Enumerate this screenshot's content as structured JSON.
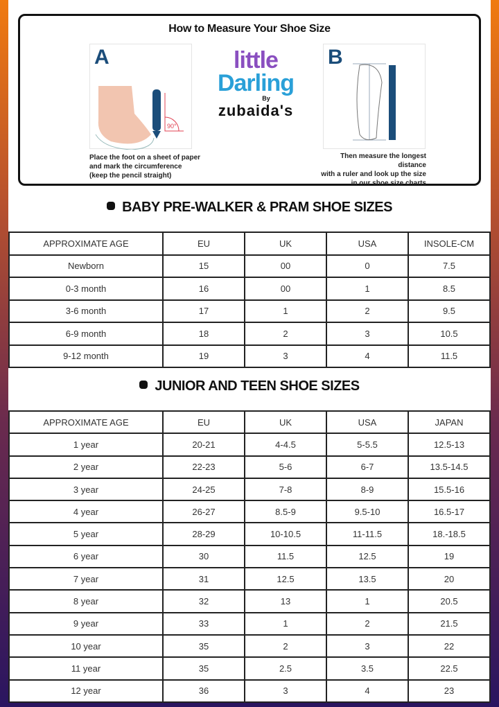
{
  "measure": {
    "title": "How to Measure Your Shoe Size",
    "step_a": {
      "letter": "A",
      "caption": [
        "Place the foot on a sheet of paper",
        "and mark the circumference",
        "(keep the pencil straight)"
      ],
      "angle_label": "90°"
    },
    "step_b": {
      "letter": "B",
      "caption": [
        "Then measure the longest distance",
        "with a ruler and look up the size",
        "in our shoe size charts"
      ]
    },
    "logo": {
      "line1": "little",
      "line2": "Darling",
      "by": "By",
      "brand": "zubaida's"
    }
  },
  "colors": {
    "accent_blue": "#1b4d7a",
    "bg_top": "#f07a10",
    "bg_bottom": "#2a1560"
  },
  "baby": {
    "title": "BABY PRE-WALKER & PRAM SHOE SIZES",
    "headers": [
      "APPROXIMATE AGE",
      "EU",
      "UK",
      "USA",
      "INSOLE-CM"
    ],
    "rows": [
      [
        "Newborn",
        "15",
        "00",
        "0",
        "7.5"
      ],
      [
        "0-3 month",
        "16",
        "00",
        "1",
        "8.5"
      ],
      [
        "3-6 month",
        "17",
        "1",
        "2",
        "9.5"
      ],
      [
        "6-9 month",
        "18",
        "2",
        "3",
        "10.5"
      ],
      [
        "9-12 month",
        "19",
        "3",
        "4",
        "11.5"
      ]
    ]
  },
  "junior": {
    "title": "JUNIOR AND TEEN SHOE SIZES",
    "headers": [
      "APPROXIMATE AGE",
      "EU",
      "UK",
      "USA",
      "JAPAN"
    ],
    "rows": [
      [
        "1 year",
        "20-21",
        "4-4.5",
        "5-5.5",
        "12.5-13"
      ],
      [
        "2 year",
        "22-23",
        "5-6",
        "6-7",
        "13.5-14.5"
      ],
      [
        "3 year",
        "24-25",
        "7-8",
        "8-9",
        "15.5-16"
      ],
      [
        "4 year",
        "26-27",
        "8.5-9",
        "9.5-10",
        "16.5-17"
      ],
      [
        "5 year",
        "28-29",
        "10-10.5",
        "11-11.5",
        "18.-18.5"
      ],
      [
        "6 year",
        "30",
        "11.5",
        "12.5",
        "19"
      ],
      [
        "7 year",
        "31",
        "12.5",
        "13.5",
        "20"
      ],
      [
        "8 year",
        "32",
        "13",
        "1",
        "20.5"
      ],
      [
        "9 year",
        "33",
        "1",
        "2",
        "21.5"
      ],
      [
        "10 year",
        "35",
        "2",
        "3",
        "22"
      ],
      [
        "11 year",
        "35",
        "2.5",
        "3.5",
        "22.5"
      ],
      [
        "12 year",
        "36",
        "3",
        "4",
        "23"
      ]
    ]
  }
}
